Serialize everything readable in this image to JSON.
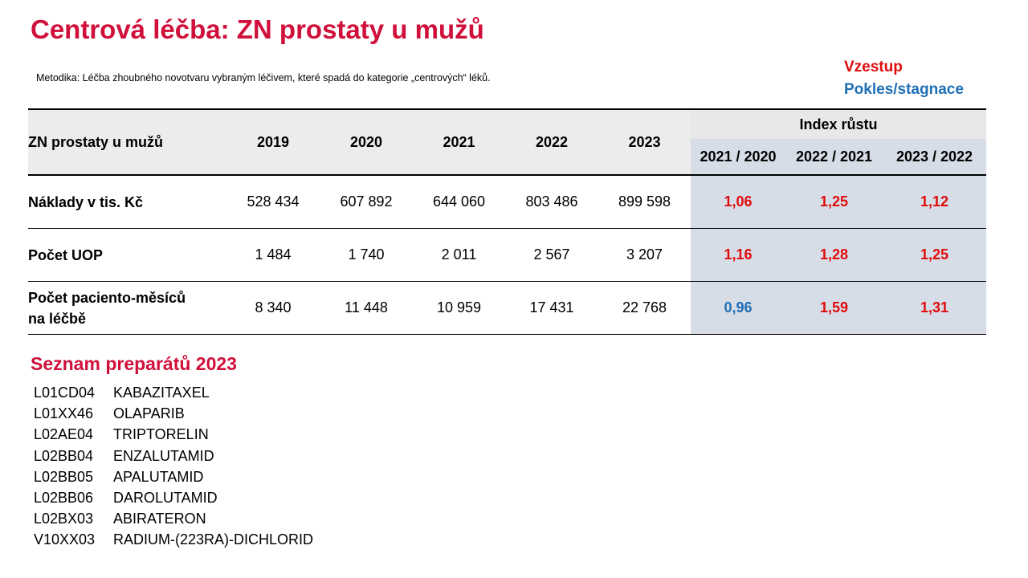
{
  "title": "Centrová léčba: ZN prostaty u mužů",
  "methodology": "Metodika: Léčba zhoubného novotvaru vybraným léčivem, které spadá do kategorie „centrových“ léků.",
  "legend": {
    "increase": "Vzestup",
    "decrease": "Pokles/stagnace",
    "increase_color": "#e00b0b",
    "decrease_color": "#1f6fb5"
  },
  "table": {
    "row_header": "ZN prostaty u mužů",
    "years": [
      "2019",
      "2020",
      "2021",
      "2022",
      "2023"
    ],
    "index_header": "Index růstu",
    "index_columns": [
      "2021 / 2020",
      "2022 / 2021",
      "2023 / 2022"
    ],
    "rows": [
      {
        "label": "Náklady v tis. Kč",
        "values": [
          "528 434",
          "607 892",
          "644 060",
          "803 486",
          "899 598"
        ],
        "indices": [
          {
            "value": "1,06",
            "trend": "up"
          },
          {
            "value": "1,25",
            "trend": "up"
          },
          {
            "value": "1,12",
            "trend": "up"
          }
        ]
      },
      {
        "label": "Počet UOP",
        "values": [
          "1 484",
          "1 740",
          "2 011",
          "2 567",
          "3 207"
        ],
        "indices": [
          {
            "value": "1,16",
            "trend": "up"
          },
          {
            "value": "1,28",
            "trend": "up"
          },
          {
            "value": "1,25",
            "trend": "up"
          }
        ]
      },
      {
        "label": "Počet paciento-měsíců na léčbě",
        "values": [
          "8 340",
          "11 448",
          "10 959",
          "17 431",
          "22 768"
        ],
        "indices": [
          {
            "value": "0,96",
            "trend": "down"
          },
          {
            "value": "1,59",
            "trend": "up"
          },
          {
            "value": "1,31",
            "trend": "up"
          }
        ]
      }
    ]
  },
  "drug_list": {
    "title": "Seznam preparátů 2023",
    "items": [
      {
        "code": "L01CD04",
        "name": "KABAZITAXEL"
      },
      {
        "code": "L01XX46",
        "name": "OLAPARIB"
      },
      {
        "code": "L02AE04",
        "name": "TRIPTORELIN"
      },
      {
        "code": "L02BB04",
        "name": "ENZALUTAMID"
      },
      {
        "code": "L02BB05",
        "name": "APALUTAMID"
      },
      {
        "code": "L02BB06",
        "name": "DAROLUTAMID"
      },
      {
        "code": "L02BX03",
        "name": "ABIRATERON"
      },
      {
        "code": "V10XX03",
        "name": "RADIUM-(223RA)-DICHLORID"
      }
    ]
  }
}
